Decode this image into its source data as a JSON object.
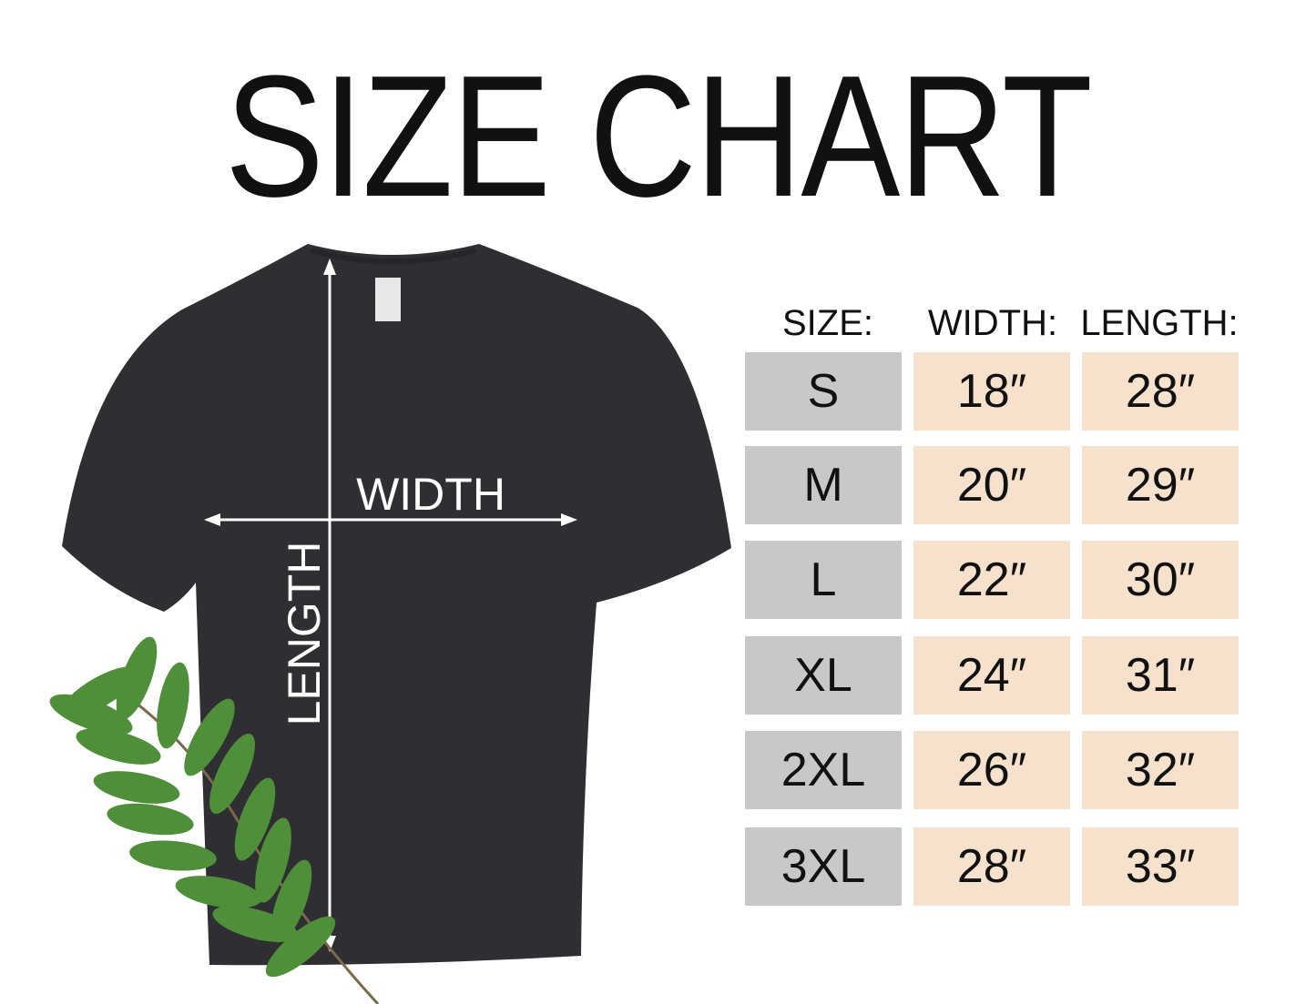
{
  "title": "SIZE CHART",
  "garment": {
    "width_label": "WIDTH",
    "length_label": "LENGTH",
    "shirt_color": "#2e2e33"
  },
  "table": {
    "headers": [
      "SIZE:",
      "WIDTH:",
      "LENGTH:"
    ],
    "rows": [
      {
        "size": "S",
        "width": "18″",
        "length": "28″"
      },
      {
        "size": "M",
        "width": "20″",
        "length": "29″"
      },
      {
        "size": "L",
        "width": "22″",
        "length": "30″"
      },
      {
        "size": "XL",
        "width": "24″",
        "length": "31″"
      },
      {
        "size": "2XL",
        "width": "26″",
        "length": "32″"
      },
      {
        "size": "3XL",
        "width": "28″",
        "length": "33″"
      }
    ],
    "colors": {
      "size_cell": "#c8c8c8",
      "value_cell": "#f5e1cc"
    }
  }
}
